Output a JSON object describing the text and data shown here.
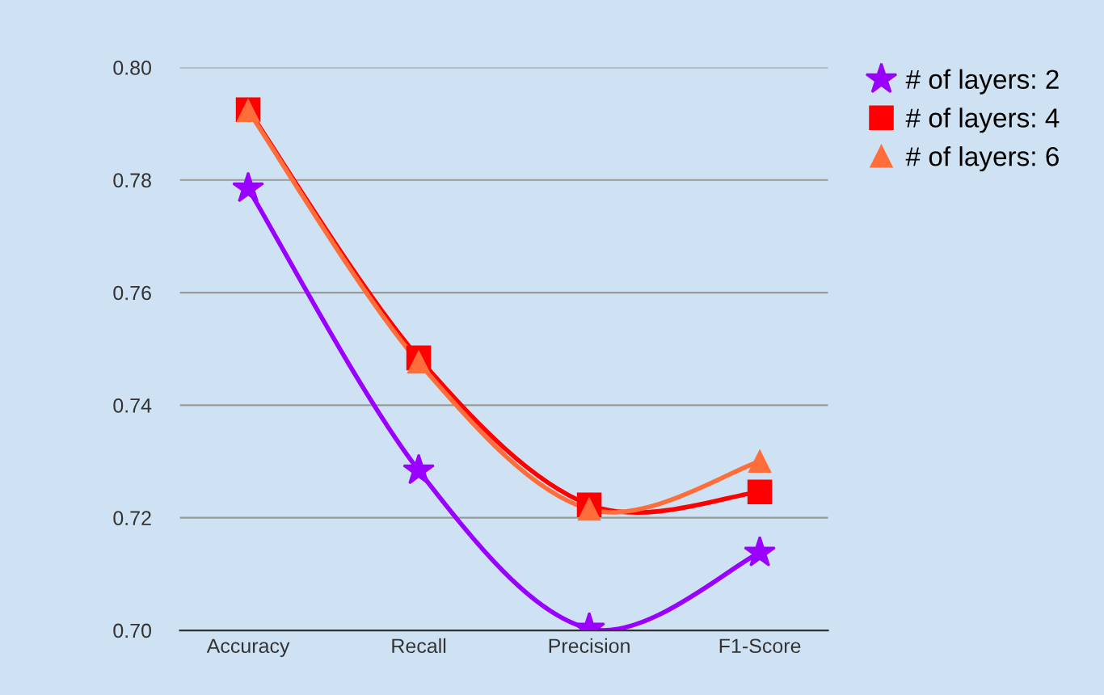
{
  "chart_data": {
    "type": "line",
    "categories": [
      "Accuracy",
      "Recall",
      "Precision",
      "F1-Score"
    ],
    "series": [
      {
        "name": "# of layers: 2",
        "color": "#9900ff",
        "marker": "star",
        "values": [
          0.7785,
          0.7284,
          0.7003,
          0.7138
        ]
      },
      {
        "name": "# of layers: 4",
        "color": "#ff0000",
        "marker": "square",
        "values": [
          0.7925,
          0.7484,
          0.7223,
          0.7246
        ]
      },
      {
        "name": "# of layers: 6",
        "color": "#ff6d3a",
        "marker": "triangle",
        "values": [
          0.7923,
          0.7476,
          0.7215,
          0.73
        ]
      }
    ],
    "ylim": [
      0.7,
      0.8
    ],
    "yticks": [
      {
        "value": 0.7,
        "label": "0.70"
      },
      {
        "value": 0.72,
        "label": "0.72"
      },
      {
        "value": 0.74,
        "label": "0.74"
      },
      {
        "value": 0.76,
        "label": "0.76"
      },
      {
        "value": 0.78,
        "label": "0.78"
      },
      {
        "value": 0.8,
        "label": "0.80"
      }
    ],
    "grid": "y",
    "legend": "top right",
    "line_style": "solid"
  }
}
